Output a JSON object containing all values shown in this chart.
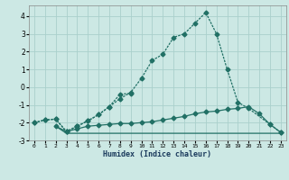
{
  "xlabel": "Humidex (Indice chaleur)",
  "x": [
    0,
    1,
    2,
    3,
    4,
    5,
    6,
    7,
    8,
    9,
    10,
    11,
    12,
    13,
    14,
    15,
    16,
    17,
    18,
    19,
    20,
    21,
    22,
    23
  ],
  "line1": [
    -2.0,
    -1.85,
    -1.8,
    -2.5,
    -2.2,
    -1.9,
    -1.55,
    -1.1,
    -0.65,
    -0.3,
    0.5,
    1.5,
    1.85,
    2.8,
    3.0,
    3.6,
    4.2,
    3.0,
    1.0,
    -0.85,
    -1.2,
    null,
    -2.1,
    -2.55
  ],
  "line2": [
    -2.0,
    -1.85,
    -1.8,
    -2.5,
    -2.2,
    -1.9,
    -1.55,
    -1.1,
    -0.4,
    -0.35,
    null,
    null,
    null,
    null,
    null,
    null,
    null,
    null,
    null,
    null,
    null,
    null,
    null,
    null
  ],
  "line3": [
    null,
    null,
    -2.2,
    -2.5,
    -2.35,
    -2.2,
    -2.15,
    -2.1,
    -2.05,
    -2.05,
    -2.0,
    -1.95,
    -1.85,
    -1.75,
    -1.65,
    -1.5,
    -1.4,
    -1.35,
    -1.25,
    -1.2,
    -1.1,
    -1.5,
    -2.1,
    -2.55
  ],
  "line4": [
    null,
    null,
    -2.2,
    -2.6,
    -2.6,
    -2.6,
    -2.6,
    -2.6,
    -2.6,
    -2.6,
    -2.6,
    -2.6,
    -2.6,
    -2.6,
    -2.6,
    -2.6,
    -2.6,
    -2.6,
    -2.6,
    -2.6,
    -2.6,
    -2.6,
    -2.6,
    -2.6
  ],
  "line_color": "#217065",
  "bg_color": "#cce8e4",
  "grid_color": "#aad0cb",
  "ylim": [
    -3.0,
    4.6
  ],
  "xlim": [
    -0.5,
    23.5
  ],
  "yticks": [
    -3,
    -2,
    -1,
    0,
    1,
    2,
    3,
    4
  ],
  "xticks": [
    0,
    1,
    2,
    3,
    4,
    5,
    6,
    7,
    8,
    9,
    10,
    11,
    12,
    13,
    14,
    15,
    16,
    17,
    18,
    19,
    20,
    21,
    22,
    23
  ],
  "marker": "D",
  "markersize": 2.5,
  "linewidth": 0.9
}
